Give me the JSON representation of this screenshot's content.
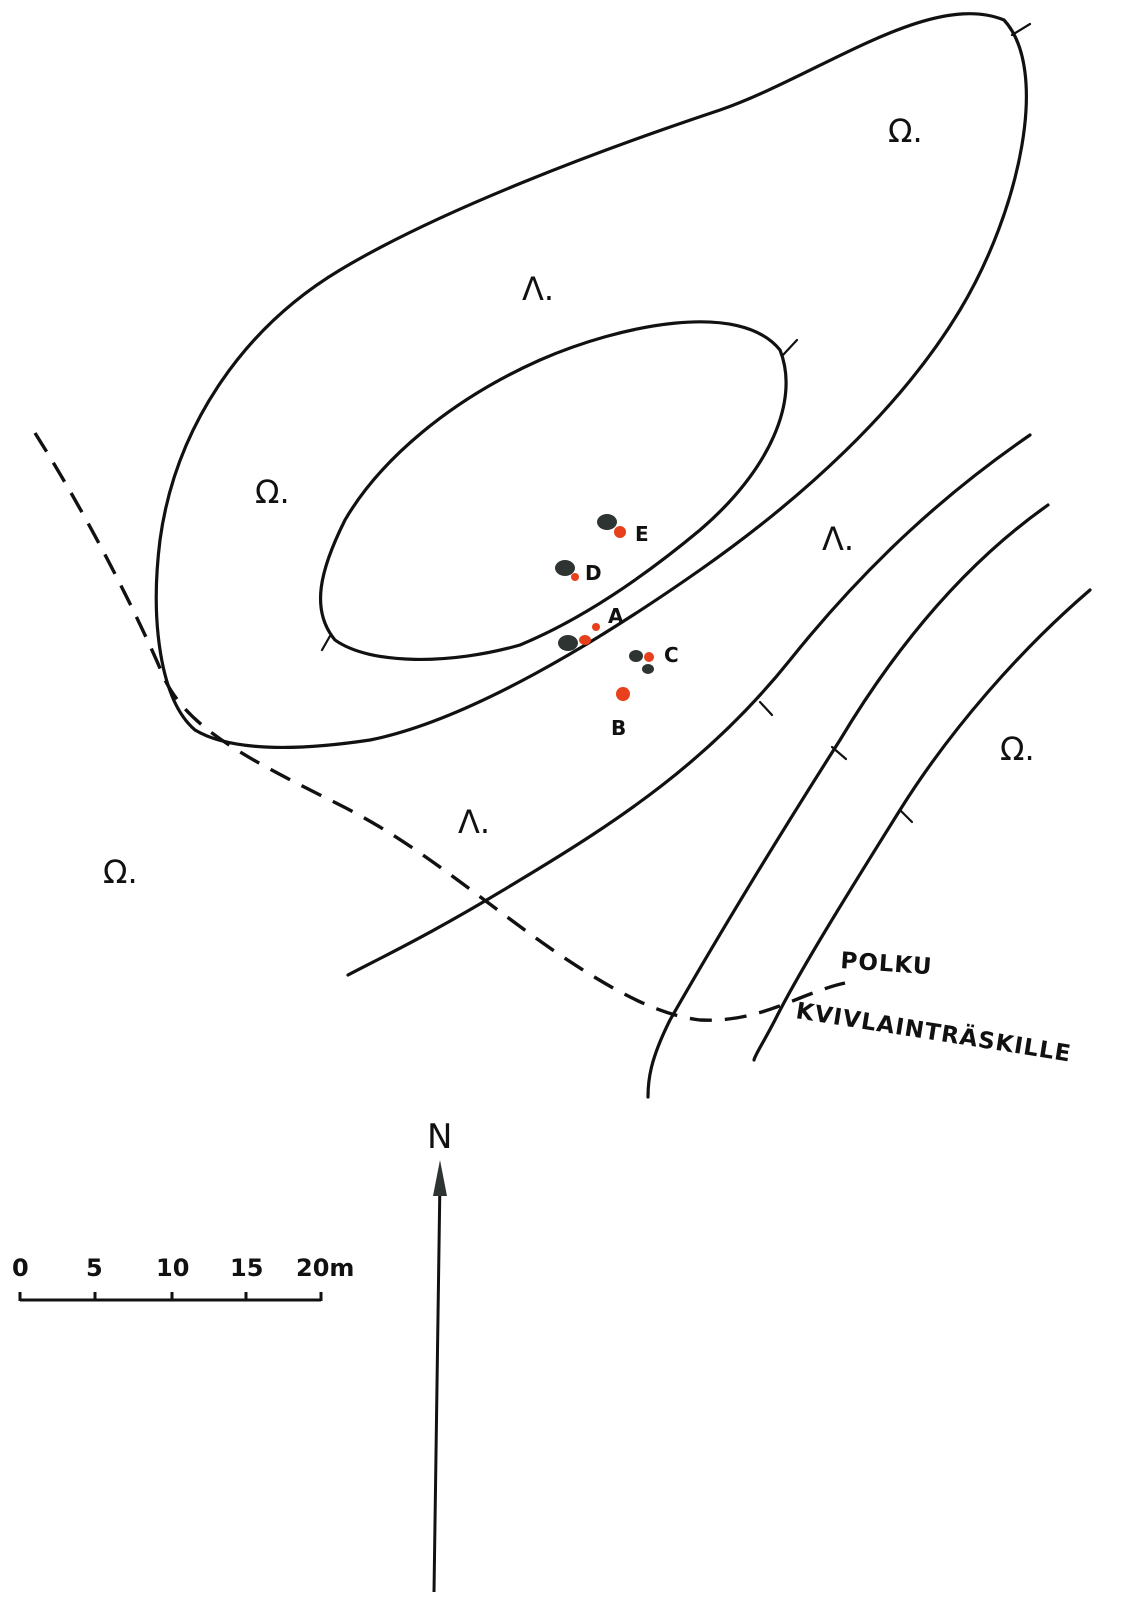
{
  "map": {
    "terrain_symbols": {
      "omega": "Ω.",
      "lambda": "Λ."
    },
    "finds": [
      "E",
      "D",
      "A",
      "C",
      "B"
    ],
    "path": {
      "label": "POLKU",
      "destination": "KVIVLAINTRÄSKILLE"
    },
    "scale": {
      "ticks": [
        "0",
        "5",
        "10",
        "15",
        "20m"
      ]
    },
    "north": "N",
    "colors": {
      "ink": "#111111",
      "find_dark": "#2e3432",
      "find_red": "#e8401c"
    }
  }
}
